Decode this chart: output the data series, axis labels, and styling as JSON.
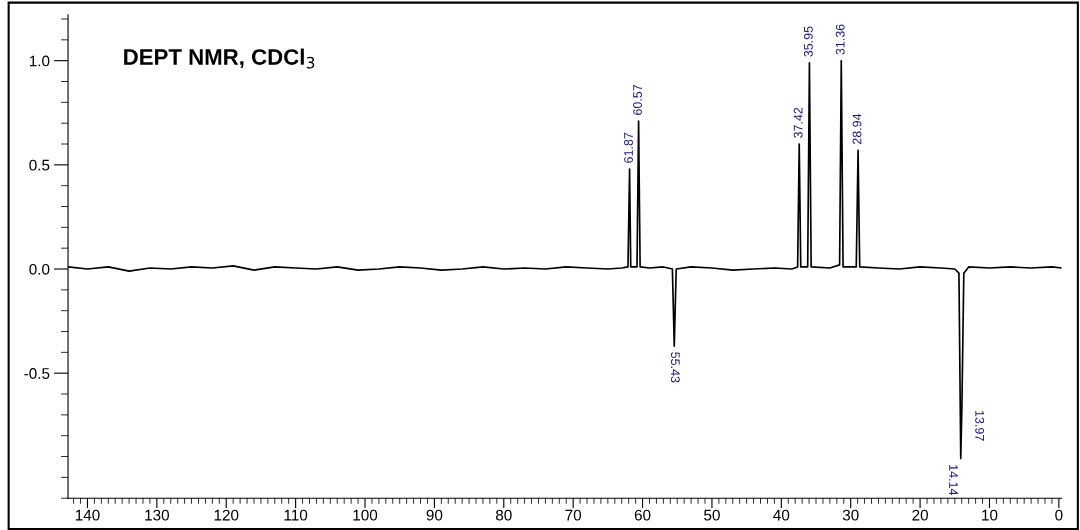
{
  "chart_data": {
    "type": "line",
    "title": "DEPT NMR, CDCl$_{3}$",
    "series": [
      {
        "color": "#000000",
        "x": [
          142.8,
          140,
          137,
          134,
          131,
          128,
          125,
          122,
          119,
          116,
          113,
          110,
          107,
          104,
          101,
          98,
          95,
          92,
          89,
          86,
          83,
          80,
          77,
          74,
          71,
          68,
          65,
          63,
          62.1,
          61.87,
          61.7,
          60.8,
          60.57,
          60.35,
          59,
          57,
          55.7,
          55.43,
          55.15,
          53,
          50,
          47,
          44,
          41,
          38.5,
          37.65,
          37.42,
          37.2,
          36.2,
          35.95,
          35.7,
          33,
          31.6,
          31.36,
          31.1,
          29.2,
          28.94,
          28.7,
          26,
          23,
          20,
          17,
          15,
          14.4,
          14.14,
          13.97,
          13.7,
          13,
          10,
          7,
          4,
          1,
          -0.4
        ],
        "values": [
          0.01,
          0.0,
          0.01,
          -0.01,
          0.005,
          0.0,
          0.01,
          0.005,
          0.015,
          -0.005,
          0.01,
          0.005,
          0.0,
          0.01,
          -0.005,
          0.0,
          0.01,
          0.005,
          -0.005,
          0.0,
          0.01,
          0.0,
          0.005,
          0.0,
          0.01,
          0.005,
          0.0,
          0.005,
          0.01,
          0.48,
          0.01,
          0.01,
          0.71,
          0.01,
          0.005,
          0.01,
          0.0,
          -0.37,
          0.0,
          0.01,
          0.005,
          -0.005,
          0.0,
          0.005,
          0.0,
          0.01,
          0.6,
          0.01,
          0.01,
          0.99,
          0.01,
          0.005,
          0.02,
          1.0,
          0.01,
          0.01,
          0.57,
          0.01,
          0.005,
          0.0,
          0.01,
          0.005,
          0.0,
          -0.02,
          -0.91,
          -0.65,
          -0.02,
          0.01,
          0.005,
          0.01,
          0.005,
          0.01,
          0.005
        ]
      }
    ],
    "xlim": [
      142.8,
      -0.4
    ],
    "xticks": [
      140,
      130,
      120,
      110,
      100,
      90,
      80,
      70,
      60,
      50,
      40,
      30,
      20,
      10,
      0
    ],
    "ylim": [
      -1.1,
      1.22
    ],
    "yticks": [
      {
        "value": -0.5,
        "label": "-0.5"
      },
      {
        "value": 0.0,
        "label": "0.0"
      },
      {
        "value": 0.5,
        "label": "0.5"
      },
      {
        "value": 1.0,
        "label": "1.0"
      }
    ],
    "grid": false,
    "legend": false,
    "annotations": [
      {
        "text": "61.87",
        "x": 61.87,
        "y": 0.48
      },
      {
        "text": "60.57",
        "x": 60.57,
        "y": 0.71
      },
      {
        "text": "55.43",
        "x": 55.43,
        "y": -0.37
      },
      {
        "text": "37.42",
        "x": 37.42,
        "y": 0.6
      },
      {
        "text": "35.95",
        "x": 35.95,
        "y": 0.99
      },
      {
        "text": "31.36",
        "x": 31.36,
        "y": 1.0
      },
      {
        "text": "28.94",
        "x": 28.94,
        "y": 0.57
      },
      {
        "text": "13.97",
        "x": 13.97,
        "y": -0.65
      },
      {
        "text": "14.14",
        "x": 14.14,
        "y": -0.91
      }
    ]
  }
}
